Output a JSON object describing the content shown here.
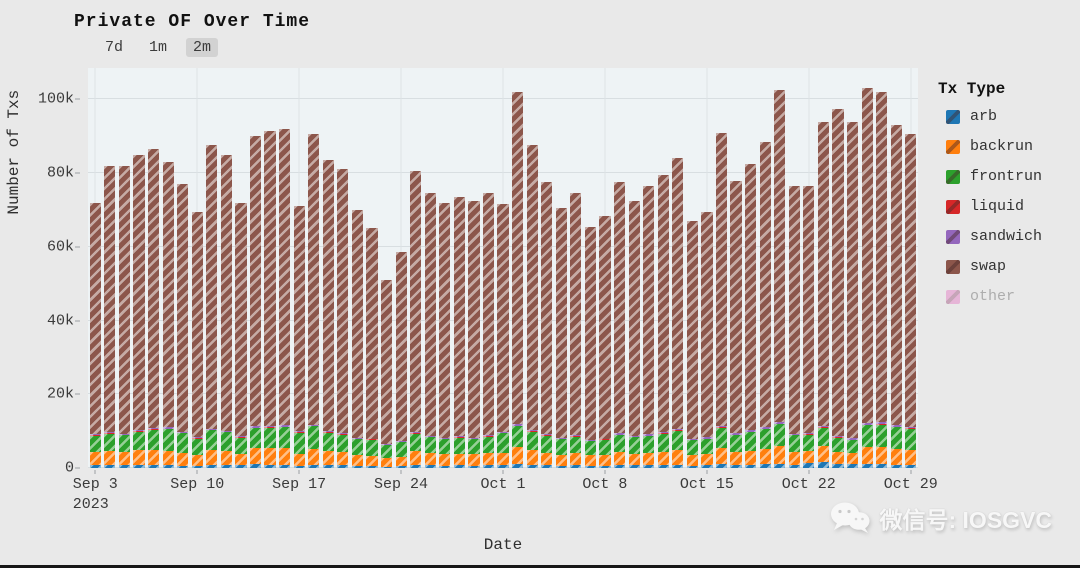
{
  "title": "Private OF Over Time",
  "range_buttons": [
    {
      "label": "7d",
      "active": false
    },
    {
      "label": "1m",
      "active": false
    },
    {
      "label": "2m",
      "active": true
    }
  ],
  "watermark": {
    "text": "微信号: IOSGVC",
    "icon": "wechat"
  },
  "colors": {
    "page_bg": "#e9e9e9",
    "plot_bg": "#eef3f5",
    "grid": "#d8dee1",
    "active_button_bg": "#d2d2d2"
  },
  "chart_data": {
    "type": "bar",
    "stacked": true,
    "hatch": "/",
    "title": "Private OF Over Time",
    "xlabel": "Date",
    "ylabel": "Number of Txs",
    "legend_title": "Tx Type",
    "legend_position": "right",
    "grid": true,
    "ylim": [
      0,
      108500
    ],
    "yticks": [
      {
        "value": 0,
        "label": "0"
      },
      {
        "value": 20000,
        "label": "20k"
      },
      {
        "value": 40000,
        "label": "40k"
      },
      {
        "value": 60000,
        "label": "60k"
      },
      {
        "value": 80000,
        "label": "80k"
      },
      {
        "value": 100000,
        "label": "100k"
      }
    ],
    "xticks": [
      {
        "i": 0,
        "label": "Sep 3",
        "sub": "2023"
      },
      {
        "i": 7,
        "label": "Sep 10"
      },
      {
        "i": 14,
        "label": "Sep 17"
      },
      {
        "i": 21,
        "label": "Sep 24"
      },
      {
        "i": 28,
        "label": "Oct 1"
      },
      {
        "i": 35,
        "label": "Oct 8"
      },
      {
        "i": 42,
        "label": "Oct 15"
      },
      {
        "i": 49,
        "label": "Oct 22"
      },
      {
        "i": 56,
        "label": "Oct 29"
      }
    ],
    "x": [
      "Sep 3",
      "Sep 4",
      "Sep 5",
      "Sep 6",
      "Sep 7",
      "Sep 8",
      "Sep 9",
      "Sep 10",
      "Sep 11",
      "Sep 12",
      "Sep 13",
      "Sep 14",
      "Sep 15",
      "Sep 16",
      "Sep 17",
      "Sep 18",
      "Sep 19",
      "Sep 20",
      "Sep 21",
      "Sep 22",
      "Sep 23",
      "Sep 24",
      "Sep 25",
      "Sep 26",
      "Sep 27",
      "Sep 28",
      "Sep 29",
      "Sep 30",
      "Oct 1",
      "Oct 2",
      "Oct 3",
      "Oct 4",
      "Oct 5",
      "Oct 6",
      "Oct 7",
      "Oct 8",
      "Oct 9",
      "Oct 10",
      "Oct 11",
      "Oct 12",
      "Oct 13",
      "Oct 14",
      "Oct 15",
      "Oct 16",
      "Oct 17",
      "Oct 18",
      "Oct 19",
      "Oct 20",
      "Oct 21",
      "Oct 22",
      "Oct 23",
      "Oct 24",
      "Oct 25",
      "Oct 26",
      "Oct 27",
      "Oct 28",
      "Oct 29"
    ],
    "series": [
      {
        "name": "arb",
        "color": "#1f77b4",
        "hidden": false,
        "values": [
          800,
          700,
          700,
          900,
          800,
          700,
          600,
          600,
          900,
          800,
          700,
          1000,
          900,
          800,
          600,
          900,
          800,
          700,
          600,
          500,
          400,
          500,
          800,
          700,
          600,
          700,
          600,
          700,
          800,
          1000,
          900,
          700,
          600,
          700,
          600,
          600,
          800,
          700,
          700,
          800,
          900,
          600,
          700,
          1000,
          800,
          900,
          1000,
          1200,
          900,
          1400,
          1500,
          1200,
          1000,
          1200,
          1100,
          900,
          900
        ]
      },
      {
        "name": "backrun",
        "color": "#ff7f0e",
        "hidden": false,
        "values": [
          3500,
          3800,
          3600,
          4000,
          4200,
          3900,
          3400,
          3000,
          4100,
          3900,
          3200,
          4300,
          4400,
          4500,
          3100,
          4200,
          3800,
          3600,
          3000,
          2800,
          2200,
          2600,
          3700,
          3300,
          3100,
          3200,
          3100,
          3300,
          3400,
          4800,
          4000,
          3500,
          3000,
          3300,
          2800,
          3000,
          3500,
          3200,
          3400,
          3600,
          3900,
          2900,
          3000,
          4300,
          3500,
          3800,
          4100,
          4900,
          3400,
          3300,
          4400,
          3200,
          3000,
          4600,
          4500,
          4200,
          4000
        ]
      },
      {
        "name": "frontrun",
        "color": "#2ca02c",
        "hidden": false,
        "values": [
          4500,
          4800,
          4600,
          5000,
          5400,
          6000,
          5500,
          4400,
          5200,
          5000,
          4300,
          5500,
          5600,
          5800,
          5900,
          6200,
          5000,
          4700,
          4200,
          4400,
          3600,
          4000,
          4800,
          4400,
          4100,
          4300,
          4200,
          4500,
          5200,
          5500,
          5000,
          4600,
          4200,
          4500,
          3900,
          4100,
          4700,
          4400,
          4600,
          4900,
          5300,
          4000,
          4200,
          5600,
          4700,
          5100,
          5500,
          5800,
          4600,
          4300,
          5000,
          3800,
          3600,
          5900,
          6200,
          6000,
          5800
        ]
      },
      {
        "name": "liquid",
        "color": "#d62728",
        "hidden": false,
        "values": [
          100,
          100,
          100,
          100,
          100,
          100,
          100,
          100,
          100,
          100,
          100,
          100,
          100,
          100,
          100,
          100,
          100,
          100,
          100,
          100,
          100,
          100,
          100,
          100,
          100,
          100,
          100,
          100,
          100,
          100,
          100,
          100,
          100,
          100,
          100,
          100,
          100,
          100,
          100,
          100,
          100,
          100,
          100,
          100,
          100,
          100,
          100,
          100,
          100,
          100,
          100,
          100,
          100,
          100,
          100,
          100,
          100
        ]
      },
      {
        "name": "sandwich",
        "color": "#9467bd",
        "hidden": false,
        "values": [
          300,
          300,
          300,
          300,
          400,
          400,
          300,
          200,
          400,
          300,
          300,
          500,
          500,
          500,
          300,
          400,
          300,
          300,
          200,
          200,
          200,
          200,
          300,
          300,
          200,
          300,
          200,
          300,
          300,
          500,
          400,
          300,
          200,
          300,
          200,
          200,
          300,
          300,
          300,
          300,
          400,
          200,
          300,
          500,
          300,
          400,
          400,
          500,
          300,
          400,
          500,
          400,
          400,
          500,
          500,
          400,
          400
        ]
      },
      {
        "name": "swap",
        "color": "#8c564b",
        "hidden": false,
        "values": [
          62800,
          72300,
          72700,
          74700,
          75600,
          71900,
          67100,
          61200,
          76800,
          74900,
          63400,
          78600,
          80000,
          80300,
          61000,
          78700,
          73500,
          71600,
          61900,
          57000,
          44500,
          51100,
          70800,
          65700,
          63900,
          64900,
          64300,
          65600,
          61700,
          90100,
          77100,
          68300,
          62400,
          65600,
          57900,
          60500,
          68100,
          63800,
          67400,
          69800,
          73400,
          59200,
          61200,
          79500,
          68600,
          72200,
          77400,
          90000,
          67200,
          67000,
          82500,
          88800,
          85900,
          90700,
          89600,
          81400,
          79300
        ]
      },
      {
        "name": "other",
        "color": "#e377c2",
        "hidden": true,
        "values": []
      }
    ]
  }
}
